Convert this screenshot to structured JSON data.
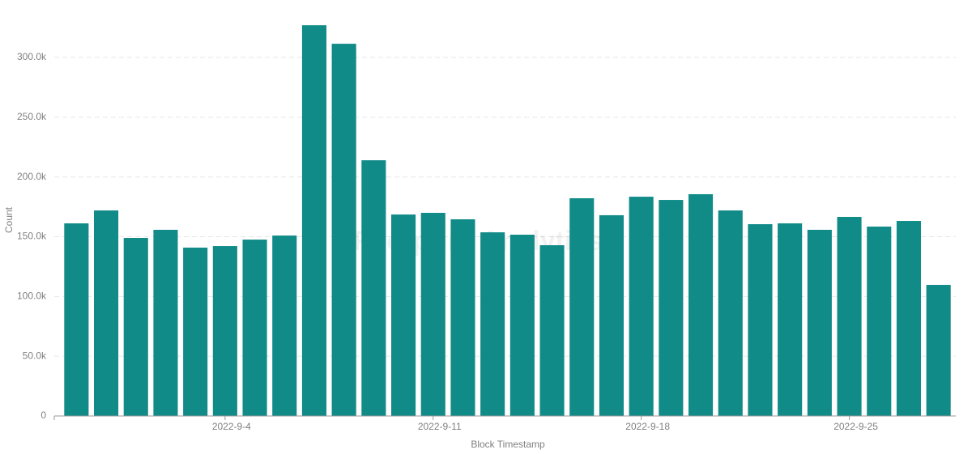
{
  "chart_data": {
    "type": "bar",
    "x_label": "Block Timestamp",
    "y_label": "Count",
    "watermark": "Footprint Analytics",
    "categories": [
      null,
      null,
      null,
      null,
      null,
      "2022-9-4",
      null,
      null,
      null,
      null,
      null,
      null,
      "2022-9-11",
      null,
      null,
      null,
      null,
      null,
      null,
      "2022-9-18",
      null,
      null,
      null,
      null,
      null,
      null,
      "2022-9-25",
      null,
      null,
      null
    ],
    "values": [
      161200,
      172000,
      149000,
      155800,
      140900,
      142200,
      147600,
      151000,
      327000,
      311500,
      214000,
      168600,
      170000,
      164600,
      153700,
      151700,
      142900,
      182200,
      168000,
      183500,
      180800,
      185600,
      172000,
      160500,
      161200,
      155800,
      166600,
      158500,
      163200,
      109700
    ],
    "color": "#108b88",
    "ylim": [
      0,
      340000
    ],
    "yticks": [
      0,
      {
        "value": 50000,
        "label": "50.0k"
      },
      {
        "value": 100000,
        "label": "100.0k"
      },
      {
        "value": 150000,
        "label": "150.0k"
      },
      {
        "value": 200000,
        "label": "200.0k"
      },
      {
        "value": 250000,
        "label": "250.0k"
      },
      {
        "value": 300000,
        "label": "300.0k"
      }
    ],
    "grid": true
  }
}
